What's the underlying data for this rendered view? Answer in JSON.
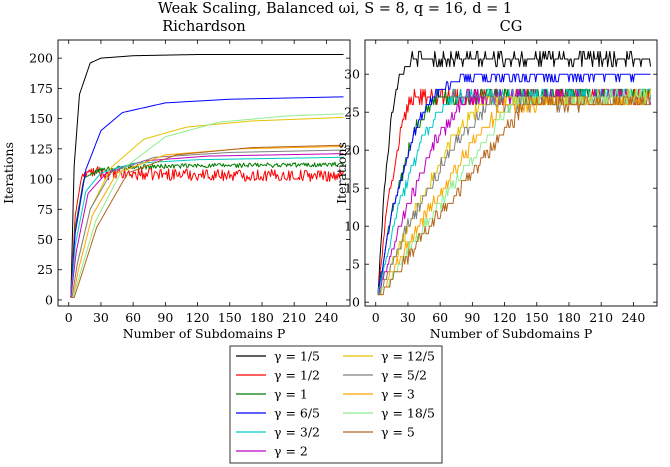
{
  "figure": {
    "title": "Weak Scaling, Balanced ωi, S = 8, q = 16, d = 1"
  },
  "legend": {
    "entries": [
      {
        "label": "γ = 1/5",
        "color": "#000000"
      },
      {
        "label": "γ = 1/2",
        "color": "#ff0000"
      },
      {
        "label": "γ = 1",
        "color": "#007a00"
      },
      {
        "label": "γ = 6/5",
        "color": "#0000ff"
      },
      {
        "label": "γ = 3/2",
        "color": "#00c8c8"
      },
      {
        "label": "γ = 2",
        "color": "#c000c0"
      },
      {
        "label": "γ = 12/5",
        "color": "#e6c200"
      },
      {
        "label": "γ = 5/2",
        "color": "#808080"
      },
      {
        "label": "γ = 3",
        "color": "#ffa500"
      },
      {
        "label": "γ = 18/5",
        "color": "#90ee90"
      },
      {
        "label": "γ = 5",
        "color": "#b5651d"
      }
    ]
  },
  "chart_data": [
    {
      "type": "line",
      "title": "Richardson",
      "xlabel": "Number of Subdomains P",
      "ylabel": "Iterations",
      "xlim": [
        -10,
        262
      ],
      "ylim": [
        -5,
        215
      ],
      "xticks": [
        "0",
        "30",
        "60",
        "90",
        "120",
        "150",
        "180",
        "210",
        "240"
      ],
      "yticks": [
        "0",
        "25",
        "50",
        "75",
        "100",
        "125",
        "150",
        "175",
        "200"
      ],
      "grid": false,
      "x_range": [
        2,
        256
      ],
      "series": [
        {
          "name": "γ = 1/5",
          "color": "#000000",
          "points": [
            [
              2,
              2
            ],
            [
              5,
              110
            ],
            [
              10,
              170
            ],
            [
              20,
              196
            ],
            [
              30,
              200
            ],
            [
              60,
              202
            ],
            [
              120,
              203
            ],
            [
              256,
              203
            ]
          ]
        },
        {
          "name": "γ = 1/2",
          "color": "#ff0000",
          "points": [
            [
              2,
              2
            ],
            [
              6,
              70
            ],
            [
              12,
              102
            ],
            [
              20,
              106
            ],
            [
              40,
              104
            ],
            [
              100,
              104
            ],
            [
              180,
              103
            ],
            [
              256,
              103
            ]
          ],
          "noise": 5
        },
        {
          "name": "γ = 1",
          "color": "#007a00",
          "points": [
            [
              2,
              2
            ],
            [
              6,
              60
            ],
            [
              14,
              100
            ],
            [
              30,
              108
            ],
            [
              60,
              110
            ],
            [
              120,
              111
            ],
            [
              256,
              112
            ]
          ],
          "noise": 2
        },
        {
          "name": "γ = 6/5",
          "color": "#0000ff",
          "points": [
            [
              2,
              2
            ],
            [
              6,
              55
            ],
            [
              16,
              108
            ],
            [
              30,
              140
            ],
            [
              50,
              155
            ],
            [
              90,
              163
            ],
            [
              150,
              166
            ],
            [
              256,
              168
            ]
          ]
        },
        {
          "name": "γ = 3/2",
          "color": "#00c8c8",
          "points": [
            [
              2,
              2
            ],
            [
              6,
              45
            ],
            [
              16,
              90
            ],
            [
              30,
              105
            ],
            [
              60,
              113
            ],
            [
              120,
              116
            ],
            [
              256,
              118
            ]
          ]
        },
        {
          "name": "γ = 2",
          "color": "#c000c0",
          "points": [
            [
              2,
              2
            ],
            [
              7,
              40
            ],
            [
              18,
              88
            ],
            [
              35,
              105
            ],
            [
              70,
              115
            ],
            [
              130,
              119
            ],
            [
              256,
              121
            ]
          ]
        },
        {
          "name": "γ = 12/5",
          "color": "#e6c200",
          "points": [
            [
              3,
              2
            ],
            [
              8,
              30
            ],
            [
              20,
              75
            ],
            [
              40,
              110
            ],
            [
              70,
              133
            ],
            [
              110,
              143
            ],
            [
              170,
              148
            ],
            [
              256,
              151
            ]
          ]
        },
        {
          "name": "γ = 5/2",
          "color": "#808080",
          "points": [
            [
              3,
              2
            ],
            [
              8,
              30
            ],
            [
              20,
              75
            ],
            [
              40,
              106
            ],
            [
              80,
              118
            ],
            [
              150,
              122
            ],
            [
              256,
              124
            ]
          ]
        },
        {
          "name": "γ = 3",
          "color": "#ffa500",
          "points": [
            [
              4,
              2
            ],
            [
              9,
              25
            ],
            [
              22,
              70
            ],
            [
              45,
              105
            ],
            [
              90,
              120
            ],
            [
              160,
              125
            ],
            [
              256,
              127
            ]
          ]
        },
        {
          "name": "γ = 18/5",
          "color": "#90ee90",
          "points": [
            [
              4,
              2
            ],
            [
              10,
              20
            ],
            [
              25,
              65
            ],
            [
              50,
              108
            ],
            [
              90,
              135
            ],
            [
              140,
              147
            ],
            [
              200,
              152
            ],
            [
              256,
              154
            ]
          ]
        },
        {
          "name": "γ = 5",
          "color": "#b5651d",
          "points": [
            [
              5,
              2
            ],
            [
              11,
              18
            ],
            [
              26,
              60
            ],
            [
              55,
              105
            ],
            [
              100,
              120
            ],
            [
              170,
              126
            ],
            [
              256,
              128
            ]
          ]
        }
      ]
    },
    {
      "type": "line",
      "title": "CG",
      "xlabel": "Number of Subdomains P",
      "ylabel": "Iterations",
      "xlim": [
        -10,
        262
      ],
      "ylim": [
        -0.5,
        34.5
      ],
      "xticks": [
        "0",
        "30",
        "60",
        "90",
        "120",
        "150",
        "180",
        "210",
        "240"
      ],
      "yticks": [
        "0",
        "5",
        "10",
        "15",
        "20",
        "25",
        "30"
      ],
      "grid": false,
      "x_range": [
        2,
        256
      ],
      "series": [
        {
          "name": "γ = 1/5",
          "color": "#000000",
          "points": [
            [
              2,
              1
            ],
            [
              8,
              15
            ],
            [
              15,
              25
            ],
            [
              22,
              30
            ],
            [
              35,
              32
            ],
            [
              256,
              32
            ]
          ],
          "noise": 0.8
        },
        {
          "name": "γ = 1/2",
          "color": "#ff0000",
          "points": [
            [
              2,
              1
            ],
            [
              10,
              12
            ],
            [
              25,
              24
            ],
            [
              35,
              27
            ],
            [
              256,
              27.5
            ]
          ],
          "noise": 0.8
        },
        {
          "name": "γ = 1",
          "color": "#007a00",
          "points": [
            [
              2,
              1
            ],
            [
              15,
              12
            ],
            [
              35,
              22
            ],
            [
              55,
              27
            ],
            [
              256,
              27.5
            ]
          ],
          "noise": 0.8
        },
        {
          "name": "γ = 6/5",
          "color": "#0000ff",
          "points": [
            [
              2,
              1
            ],
            [
              15,
              12
            ],
            [
              40,
              24
            ],
            [
              60,
              28
            ],
            [
              80,
              29.5
            ],
            [
              256,
              30
            ]
          ],
          "noise": 0.5
        },
        {
          "name": "γ = 3/2",
          "color": "#00c8c8",
          "points": [
            [
              2,
              1
            ],
            [
              20,
              12
            ],
            [
              45,
              22
            ],
            [
              70,
              27
            ],
            [
              256,
              27.5
            ]
          ],
          "noise": 0.8
        },
        {
          "name": "γ = 2",
          "color": "#c000c0",
          "points": [
            [
              2,
              1
            ],
            [
              25,
              11
            ],
            [
              55,
              21
            ],
            [
              85,
              27
            ],
            [
              256,
              27
            ]
          ],
          "noise": 0.8
        },
        {
          "name": "γ = 12/5",
          "color": "#e6c200",
          "points": [
            [
              3,
              1
            ],
            [
              30,
              10
            ],
            [
              65,
              20
            ],
            [
              100,
              26.5
            ],
            [
              256,
              27
            ]
          ],
          "noise": 0.8
        },
        {
          "name": "γ = 5/2",
          "color": "#808080",
          "points": [
            [
              3,
              1
            ],
            [
              30,
              10
            ],
            [
              70,
              20
            ],
            [
              105,
              26
            ],
            [
              256,
              26.5
            ]
          ],
          "noise": 0.8
        },
        {
          "name": "γ = 3",
          "color": "#ffa500",
          "points": [
            [
              4,
              1
            ],
            [
              35,
              9
            ],
            [
              80,
              19
            ],
            [
              120,
              26
            ],
            [
              256,
              26.5
            ]
          ],
          "noise": 0.8
        },
        {
          "name": "γ = 18/5",
          "color": "#90ee90",
          "points": [
            [
              4,
              1
            ],
            [
              40,
              9
            ],
            [
              90,
              19
            ],
            [
              130,
              26.5
            ],
            [
              256,
              27
            ]
          ],
          "noise": 0.8
        },
        {
          "name": "γ = 5",
          "color": "#b5651d",
          "points": [
            [
              5,
              1
            ],
            [
              40,
              8
            ],
            [
              95,
              18
            ],
            [
              140,
              26
            ],
            [
              256,
              26.5
            ]
          ],
          "noise": 0.8
        }
      ]
    }
  ]
}
